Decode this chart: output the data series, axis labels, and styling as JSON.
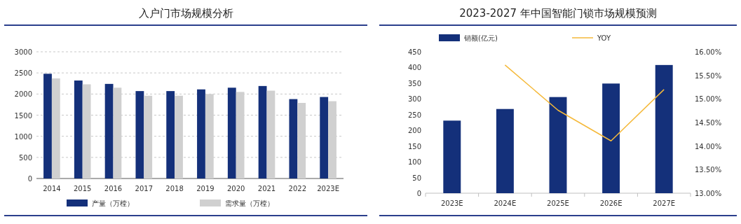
{
  "chart_data": [
    {
      "type": "bar",
      "title": "入户门市场规模分析",
      "categories": [
        "2014",
        "2015",
        "2016",
        "2017",
        "2018",
        "2019",
        "2020",
        "2021",
        "2022",
        "2023E"
      ],
      "series": [
        {
          "name": "产量（万樘）",
          "color": "#14307a",
          "values": [
            2480,
            2320,
            2240,
            2070,
            2070,
            2110,
            2150,
            2190,
            1880,
            1930
          ]
        },
        {
          "name": "需求量（万樘）",
          "color": "#d0d0d0",
          "values": [
            2370,
            2230,
            2150,
            1960,
            1960,
            2000,
            2050,
            2080,
            1790,
            1830
          ]
        }
      ],
      "ylim": [
        0,
        3000
      ],
      "yticks": [
        0,
        500,
        1000,
        1500,
        2000,
        2500,
        3000
      ],
      "grid": "y",
      "legend": "bottom"
    },
    {
      "type": "bar",
      "title": "2023-2027  年中国智能门锁市场规模预测",
      "categories": [
        "2023E",
        "2024E",
        "2025E",
        "2026E",
        "2027E"
      ],
      "series": [
        {
          "name": "销额(亿元)",
          "color": "#14307a",
          "values": [
            231,
            268,
            306,
            349,
            408
          ]
        },
        {
          "name": "YOY",
          "type": "line",
          "axis": "y2",
          "color": "#f5b93a",
          "values": [
            null,
            15.72,
            14.76,
            14.11,
            15.2
          ]
        }
      ],
      "ylim": [
        0,
        450
      ],
      "yticks": [
        0,
        50,
        100,
        150,
        200,
        250,
        300,
        350,
        400,
        450
      ],
      "y2lim": [
        13,
        16
      ],
      "y2ticks": [
        {
          "value": 13,
          "label": "13.00%"
        },
        {
          "value": 13.5,
          "label": "13.50%"
        },
        {
          "value": 14,
          "label": "14.00%"
        },
        {
          "value": 14.5,
          "label": "14.50%"
        },
        {
          "value": 15,
          "label": "15.00%"
        },
        {
          "value": 15.5,
          "label": "15.50%"
        },
        {
          "value": 16,
          "label": "16.00%"
        }
      ],
      "grid": false,
      "legend": "top"
    }
  ]
}
